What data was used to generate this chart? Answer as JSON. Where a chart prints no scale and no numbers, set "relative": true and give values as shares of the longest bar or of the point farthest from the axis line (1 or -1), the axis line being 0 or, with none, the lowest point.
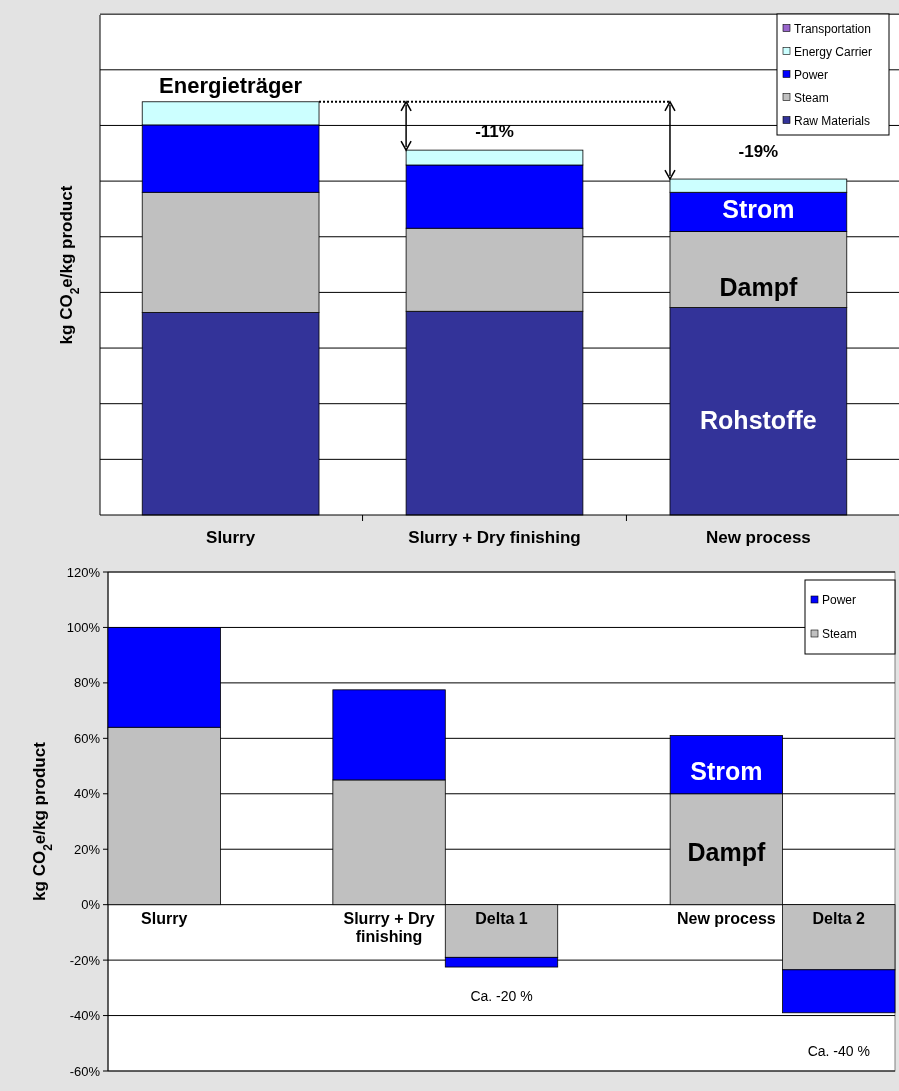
{
  "chart_data": [
    {
      "type": "bar",
      "stacked": true,
      "relative": true,
      "ylabel": "kg CO$_{2}$e/kg product",
      "categories": [
        "Slurry",
        "Slurry + Dry finishing",
        "New process"
      ],
      "grid": true,
      "legend": "top right",
      "series": [
        {
          "name": "Raw Materials",
          "color": "#333399",
          "values": [
            0.49,
            0.493,
            0.502
          ]
        },
        {
          "name": "Steam",
          "color": "#c0c0c0",
          "values": [
            0.291,
            0.201,
            0.184
          ]
        },
        {
          "name": "Power",
          "color": "#0000ff",
          "values": [
            0.163,
            0.153,
            0.095
          ]
        },
        {
          "name": "Energy Carrier",
          "color": "#ccffff",
          "values": [
            0.056,
            0.036,
            0.032
          ]
        },
        {
          "name": "Transportation",
          "color": "#9966cc",
          "values": [
            null,
            null,
            null
          ]
        }
      ],
      "annotations": [
        "Energieträger",
        "-11%",
        "-19%",
        "Strom",
        "Dampf",
        "Rohstoffe"
      ]
    },
    {
      "type": "bar",
      "stacked": true,
      "ylabel": "kg CO$_{2}$e/kg product",
      "categories": [
        "Slurry",
        null,
        "Slurry + Dry finishing",
        "Delta 1",
        null,
        "New process",
        "Delta 2"
      ],
      "grid": "y",
      "legend": "top right",
      "ylim": [
        -60,
        120
      ],
      "yticks": [
        {
          "value": -60,
          "label": "-60%"
        },
        {
          "value": -40,
          "label": "-40%"
        },
        {
          "value": -20,
          "label": "-20%"
        },
        {
          "value": 0,
          "label": "0%"
        },
        {
          "value": 20,
          "label": "20%"
        },
        {
          "value": 40,
          "label": "40%"
        },
        {
          "value": 60,
          "label": "60%"
        },
        {
          "value": 80,
          "label": "80%"
        },
        {
          "value": 100,
          "label": "100%"
        },
        {
          "value": 120,
          "label": "120%"
        }
      ],
      "series": [
        {
          "name": "Steam",
          "color": "#c0c0c0",
          "values": [
            64,
            null,
            45,
            -19,
            null,
            40,
            -23.5
          ]
        },
        {
          "name": "Power",
          "color": "#0000ff",
          "values": [
            36,
            null,
            32.5,
            -3.5,
            null,
            21,
            -15.5
          ]
        }
      ],
      "annotations": [
        "Strom",
        "Dampf",
        "Ca. -20 %",
        "Ca. -40 %"
      ]
    }
  ]
}
